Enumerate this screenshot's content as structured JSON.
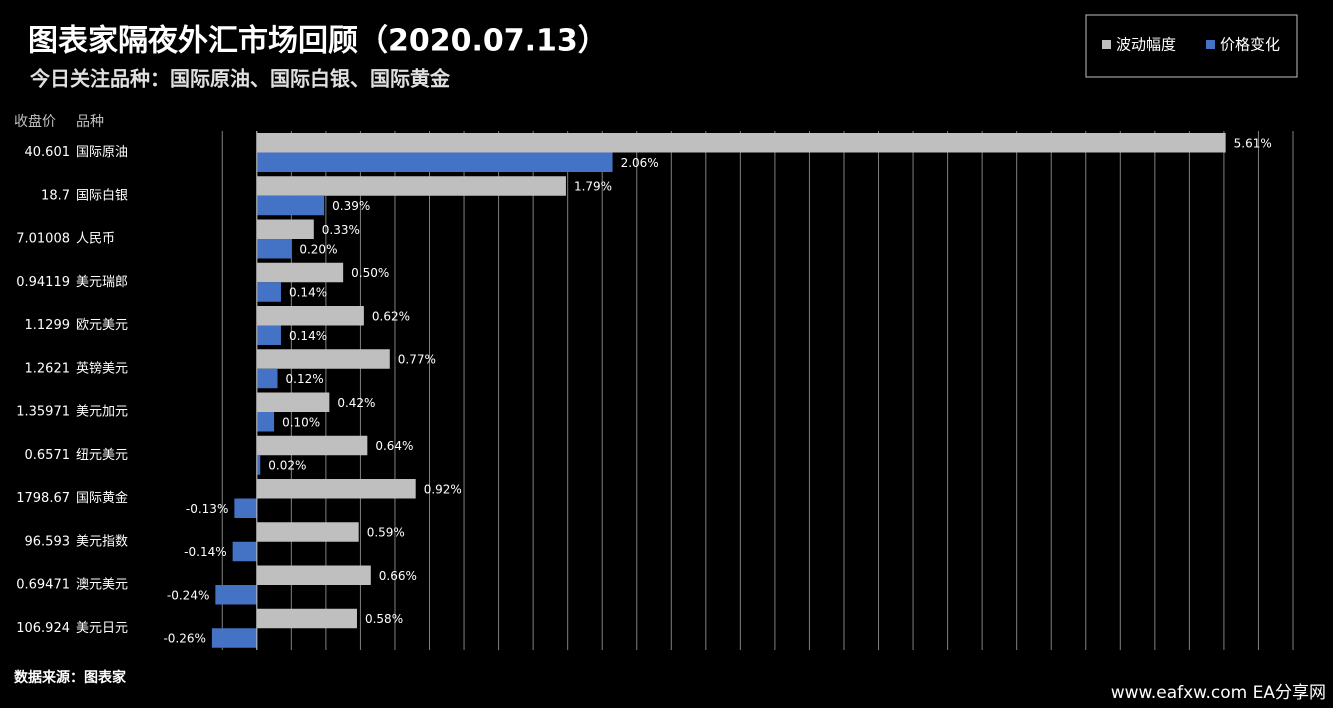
{
  "chart_data": {
    "type": "hbar",
    "title": "图表家隔夜外汇市场回顾（2020.07.13）",
    "subtitle": "今日关注品种：国际原油、国际白银、国际黄金",
    "price_header": "收盘价",
    "category_header": "品种",
    "source": "数据来源：图表家",
    "watermark": "www.eafxw.com  EA分享网",
    "categories": [
      "国际原油",
      "国际白银",
      "人民币",
      "美元瑞郎",
      "欧元美元",
      "英镑美元",
      "美元加元",
      "纽元美元",
      "国际黄金",
      "美元指数",
      "澳元美元",
      "美元日元"
    ],
    "closing_prices": [
      40.601,
      18.7,
      7.01008,
      0.94119,
      1.1299,
      1.2621,
      1.35971,
      0.6571,
      1798.67,
      96.593,
      0.69471,
      106.924
    ],
    "series": [
      {
        "name": "波动幅度",
        "color": "#bfbfbf",
        "values": [
          5.61,
          1.79,
          0.33,
          0.5,
          0.62,
          0.77,
          0.42,
          0.64,
          0.92,
          0.59,
          0.66,
          0.58
        ],
        "value_labels": [
          "5.61%",
          "1.79%",
          "0.33%",
          "0.50%",
          "0.62%",
          "0.77%",
          "0.42%",
          "0.64%",
          "0.92%",
          "0.59%",
          "0.66%",
          "0.58%"
        ]
      },
      {
        "name": "价格变化",
        "color": "#4472c4",
        "values": [
          2.06,
          0.39,
          0.2,
          0.14,
          0.14,
          0.12,
          0.1,
          0.02,
          -0.13,
          -0.14,
          -0.24,
          -0.26
        ],
        "value_labels": [
          "2.06%",
          "0.39%",
          "0.20%",
          "0.14%",
          "0.14%",
          "0.12%",
          "0.10%",
          "0.02%",
          "-0.13%",
          "-0.14%",
          "-0.24%",
          "-0.26%"
        ]
      }
    ],
    "xlim": [
      -0.3,
      6.0
    ],
    "xticks": [
      -0.2,
      0,
      0.2,
      0.4,
      0.6,
      0.8,
      1.0,
      1.2,
      1.4,
      1.6,
      1.8,
      2.0,
      2.2,
      2.4,
      2.6,
      2.8,
      3.0,
      3.2,
      3.4,
      3.6,
      3.8,
      4.0,
      4.2,
      4.4,
      4.6,
      4.8,
      5.0,
      5.2,
      5.4,
      5.6,
      5.8,
      6.0
    ],
    "grid": true,
    "legend": "top-right"
  }
}
